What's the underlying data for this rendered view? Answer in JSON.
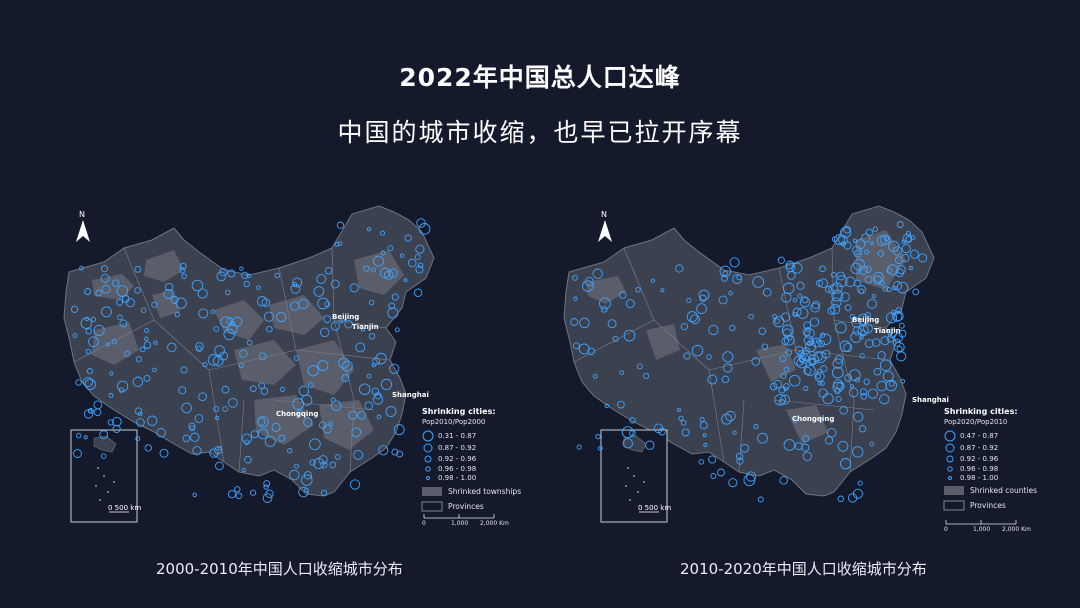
{
  "title_line1": "2022年中国总人口达峰",
  "title_line2": "中国的城市收缩，也早已拉开序幕",
  "maps": [
    {
      "caption": "2000-2010年中国人口收缩城市分布",
      "legend_title": "Shrinking cities:",
      "legend_ratio": "Pop2010/Pop2000",
      "legend_classes": [
        "0.31 - 0.87",
        "0.87 - 0.92",
        "0.92 - 0.96",
        "0.96 - 0.98",
        "0.98 - 1.00"
      ],
      "legend_area_label": "Shrinked townships",
      "legend_province_label": "Provinces",
      "cities": [
        "Beijing",
        "Tianjin",
        "Shanghai",
        "Chongqing"
      ],
      "scale_ticks": [
        "0",
        "1,000",
        "2,000 Km"
      ],
      "inset_scale": "0   500 km",
      "north": "N"
    },
    {
      "caption": "2010-2020年中国人口收缩城市分布",
      "legend_title": "Shrinking cities:",
      "legend_ratio": "Pop2020/Pop2010",
      "legend_classes": [
        "0.47 - 0.87",
        "0.87 - 0.92",
        "0.92 - 0.96",
        "0.96 - 0.98",
        "0.98 - 1.00"
      ],
      "legend_area_label": "Shrinked counties",
      "legend_province_label": "Provinces",
      "cities": [
        "Beijing",
        "Tianjin",
        "Shanghai",
        "Chongqing"
      ],
      "scale_ticks": [
        "0",
        "1,000",
        "2,000 Km"
      ],
      "inset_scale": "0   500 km",
      "north": "N"
    }
  ],
  "colors": {
    "background": "#141a2c",
    "land": "#3c414f",
    "shrink_area": "#5a5e6a",
    "circle": "#3fa3ff"
  }
}
